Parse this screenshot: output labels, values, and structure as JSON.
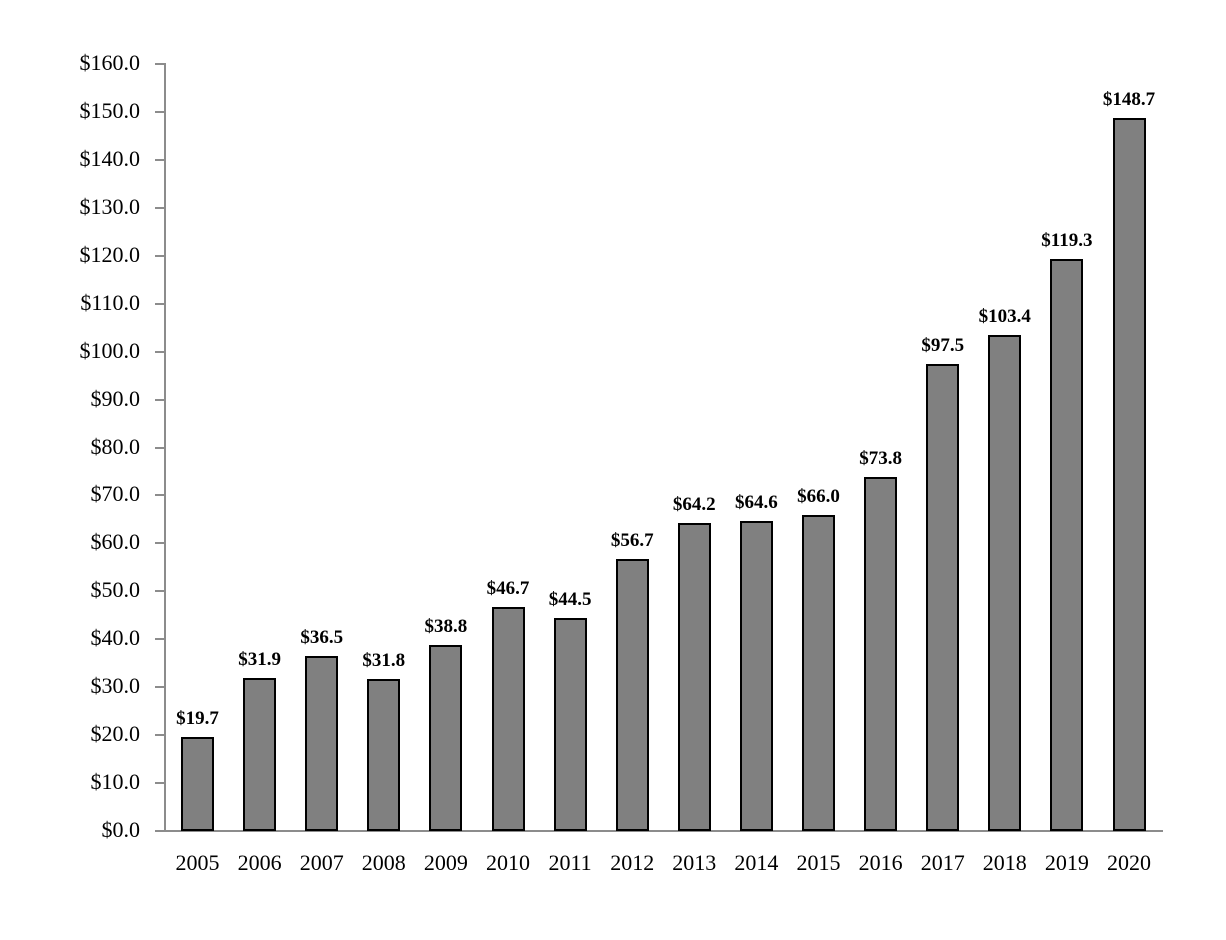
{
  "chart_data": {
    "type": "bar",
    "title": "",
    "xlabel": "",
    "ylabel": "",
    "categories": [
      "2005",
      "2006",
      "2007",
      "2008",
      "2009",
      "2010",
      "2011",
      "2012",
      "2013",
      "2014",
      "2015",
      "2016",
      "2017",
      "2018",
      "2019",
      "2020"
    ],
    "values": [
      19.7,
      31.9,
      36.5,
      31.8,
      38.8,
      46.7,
      44.5,
      56.7,
      64.2,
      64.6,
      66.0,
      73.8,
      97.5,
      103.4,
      119.3,
      148.7
    ],
    "data_labels": [
      "$19.7",
      "$31.9",
      "$36.5",
      "$31.8",
      "$38.8",
      "$46.7",
      "$44.5",
      "$56.7",
      "$64.2",
      "$64.6",
      "$66.0",
      "$73.8",
      "$97.5",
      "$103.4",
      "$119.3",
      "$148.7"
    ],
    "ylim": [
      0,
      160
    ],
    "yticks": [
      0,
      10,
      20,
      30,
      40,
      50,
      60,
      70,
      80,
      90,
      100,
      110,
      120,
      130,
      140,
      150,
      160
    ],
    "ytick_labels": [
      "$0.0",
      "$10.0",
      "$20.0",
      "$30.0",
      "$40.0",
      "$50.0",
      "$60.0",
      "$70.0",
      "$80.0",
      "$90.0",
      "$100.0",
      "$110.0",
      "$120.0",
      "$130.0",
      "$140.0",
      "$150.0",
      "$160.0"
    ],
    "grid": false,
    "legend": null,
    "bar_color": "#808080",
    "bar_edge_color": "#000000"
  }
}
